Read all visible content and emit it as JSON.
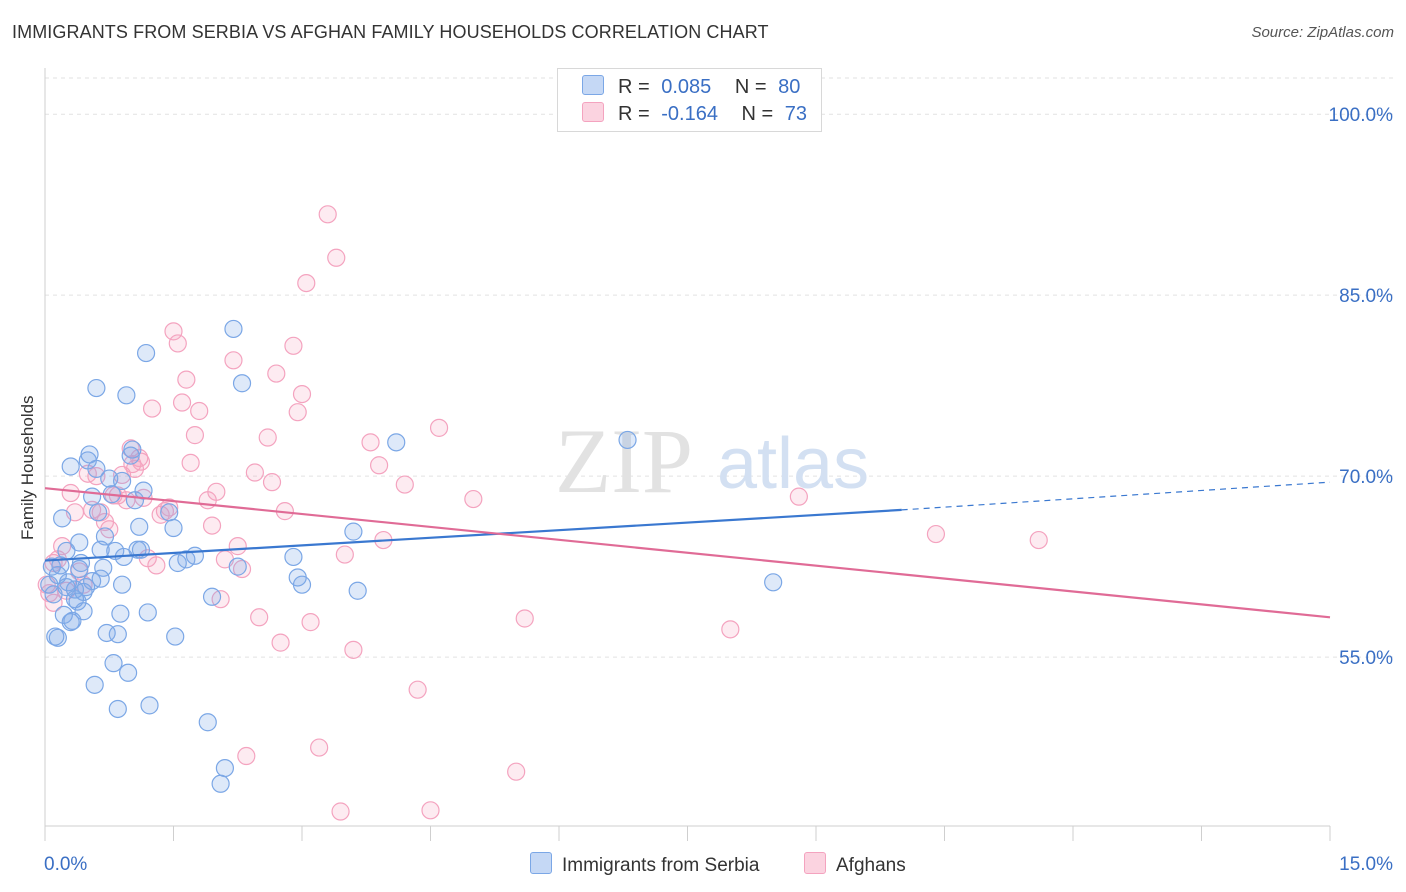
{
  "title": "IMMIGRANTS FROM SERBIA VS AFGHAN FAMILY HOUSEHOLDS CORRELATION CHART",
  "source": "Source: ZipAtlas.com",
  "watermark": {
    "zip": "ZIP",
    "atlas": "atlas"
  },
  "legend": {
    "rows": [
      {
        "r_label": "R =",
        "r_value": "0.085",
        "n_label": "N =",
        "n_value": "80",
        "color": "#7ba7e6"
      },
      {
        "r_label": "R =",
        "r_value": "-0.164",
        "n_label": "N =",
        "n_value": "73",
        "color": "#f4a3bf"
      }
    ]
  },
  "chart_data": {
    "type": "scatter",
    "xlabel": "",
    "ylabel": "Family Households",
    "xlim": [
      0,
      15
    ],
    "ylim": [
      41,
      103
    ],
    "x_tick_labels": [
      "0.0%",
      "15.0%"
    ],
    "y_ticks": [
      55,
      70,
      85,
      100
    ],
    "y_tick_labels": [
      "55.0%",
      "70.0%",
      "85.0%",
      "100.0%"
    ],
    "legend_position": "top-center",
    "series": [
      {
        "name": "Immigrants from Serbia",
        "color": "#7ba7e6",
        "line_color": "#3a78d0",
        "trend": {
          "x0": 0.0,
          "y0": 63.0,
          "x1": 10.0,
          "y1": 67.2,
          "dash_to": 15.0,
          "dash_y": 69.5
        },
        "points": [
          [
            0.05,
            61.0
          ],
          [
            0.08,
            62.5
          ],
          [
            0.1,
            60.2
          ],
          [
            0.12,
            56.7
          ],
          [
            0.15,
            61.8
          ],
          [
            0.18,
            62.6
          ],
          [
            0.2,
            66.5
          ],
          [
            0.22,
            58.5
          ],
          [
            0.25,
            63.8
          ],
          [
            0.27,
            61.2
          ],
          [
            0.3,
            70.8
          ],
          [
            0.32,
            58.0
          ],
          [
            0.35,
            60.6
          ],
          [
            0.38,
            59.6
          ],
          [
            0.4,
            64.5
          ],
          [
            0.42,
            62.8
          ],
          [
            0.45,
            58.8
          ],
          [
            0.48,
            60.8
          ],
          [
            0.5,
            71.3
          ],
          [
            0.52,
            71.8
          ],
          [
            0.55,
            61.3
          ],
          [
            0.58,
            52.7
          ],
          [
            0.6,
            77.3
          ],
          [
            0.62,
            67.0
          ],
          [
            0.65,
            63.9
          ],
          [
            0.68,
            62.4
          ],
          [
            0.7,
            65.0
          ],
          [
            0.72,
            57.0
          ],
          [
            0.75,
            69.8
          ],
          [
            0.78,
            68.5
          ],
          [
            0.8,
            54.5
          ],
          [
            0.82,
            63.8
          ],
          [
            0.85,
            50.7
          ],
          [
            0.88,
            58.6
          ],
          [
            0.9,
            61.0
          ],
          [
            0.92,
            63.3
          ],
          [
            0.95,
            76.7
          ],
          [
            0.97,
            53.7
          ],
          [
            1.0,
            71.7
          ],
          [
            1.02,
            72.2
          ],
          [
            1.05,
            68.0
          ],
          [
            1.08,
            63.9
          ],
          [
            1.1,
            65.8
          ],
          [
            1.12,
            63.9
          ],
          [
            1.15,
            68.8
          ],
          [
            1.18,
            80.2
          ],
          [
            1.2,
            58.7
          ],
          [
            1.22,
            51.0
          ],
          [
            1.45,
            67.0
          ],
          [
            1.5,
            65.7
          ],
          [
            1.52,
            56.7
          ],
          [
            1.55,
            62.8
          ],
          [
            1.75,
            63.4
          ],
          [
            1.9,
            49.6
          ],
          [
            1.95,
            60.0
          ],
          [
            2.05,
            44.5
          ],
          [
            2.1,
            45.8
          ],
          [
            2.2,
            82.2
          ],
          [
            2.25,
            62.5
          ],
          [
            2.3,
            77.7
          ],
          [
            2.9,
            63.3
          ],
          [
            2.95,
            61.6
          ],
          [
            3.0,
            61.0
          ],
          [
            3.6,
            65.4
          ],
          [
            3.65,
            60.5
          ],
          [
            4.1,
            72.8
          ],
          [
            6.8,
            73.0
          ],
          [
            8.5,
            61.2
          ],
          [
            0.35,
            59.8
          ],
          [
            0.9,
            69.6
          ],
          [
            0.55,
            68.3
          ],
          [
            1.65,
            63.1
          ],
          [
            0.15,
            56.6
          ],
          [
            0.25,
            60.8
          ],
          [
            0.45,
            60.4
          ],
          [
            0.65,
            61.5
          ],
          [
            0.85,
            56.9
          ],
          [
            0.4,
            62.3
          ],
          [
            0.3,
            57.9
          ],
          [
            0.6,
            70.6
          ]
        ]
      },
      {
        "name": "Afghans",
        "color": "#f4a3bf",
        "line_color": "#e06b96",
        "trend": {
          "x0": 0.0,
          "y0": 69.0,
          "x1": 15.0,
          "y1": 58.3
        },
        "points": [
          [
            0.02,
            61.0
          ],
          [
            0.05,
            60.3
          ],
          [
            0.1,
            62.8
          ],
          [
            0.15,
            63.1
          ],
          [
            0.2,
            64.2
          ],
          [
            0.25,
            60.5
          ],
          [
            0.3,
            68.6
          ],
          [
            0.35,
            67.0
          ],
          [
            0.4,
            62.1
          ],
          [
            0.45,
            61.0
          ],
          [
            0.5,
            70.2
          ],
          [
            0.55,
            67.2
          ],
          [
            0.6,
            70.0
          ],
          [
            0.65,
            67.0
          ],
          [
            0.7,
            66.2
          ],
          [
            0.75,
            65.6
          ],
          [
            0.8,
            68.4
          ],
          [
            0.85,
            68.4
          ],
          [
            0.9,
            70.1
          ],
          [
            0.95,
            68.0
          ],
          [
            1.0,
            72.3
          ],
          [
            1.02,
            71.0
          ],
          [
            1.05,
            70.6
          ],
          [
            1.1,
            71.5
          ],
          [
            1.12,
            71.2
          ],
          [
            1.15,
            68.2
          ],
          [
            1.2,
            63.2
          ],
          [
            1.25,
            75.6
          ],
          [
            1.3,
            62.6
          ],
          [
            1.35,
            66.8
          ],
          [
            1.4,
            67.1
          ],
          [
            1.45,
            67.4
          ],
          [
            1.5,
            82.0
          ],
          [
            1.55,
            81.0
          ],
          [
            1.6,
            76.1
          ],
          [
            1.65,
            78.0
          ],
          [
            1.7,
            71.1
          ],
          [
            1.75,
            73.4
          ],
          [
            1.8,
            75.4
          ],
          [
            1.9,
            68.0
          ],
          [
            1.95,
            65.9
          ],
          [
            2.0,
            68.7
          ],
          [
            2.05,
            59.8
          ],
          [
            2.1,
            63.1
          ],
          [
            2.2,
            79.6
          ],
          [
            2.25,
            64.2
          ],
          [
            2.3,
            62.3
          ],
          [
            2.35,
            46.8
          ],
          [
            2.45,
            70.3
          ],
          [
            2.5,
            58.3
          ],
          [
            2.6,
            73.2
          ],
          [
            2.65,
            69.5
          ],
          [
            2.7,
            78.5
          ],
          [
            2.75,
            56.2
          ],
          [
            2.8,
            67.1
          ],
          [
            2.9,
            80.8
          ],
          [
            2.95,
            75.3
          ],
          [
            3.0,
            76.8
          ],
          [
            3.05,
            86.0
          ],
          [
            3.1,
            57.9
          ],
          [
            3.2,
            47.5
          ],
          [
            3.3,
            91.7
          ],
          [
            3.4,
            88.1
          ],
          [
            3.45,
            42.2
          ],
          [
            3.5,
            63.5
          ],
          [
            3.6,
            55.6
          ],
          [
            3.8,
            72.8
          ],
          [
            3.9,
            70.9
          ],
          [
            3.95,
            64.7
          ],
          [
            4.2,
            69.3
          ],
          [
            4.35,
            52.3
          ],
          [
            4.5,
            42.3
          ],
          [
            4.6,
            74.0
          ]
        ]
      }
    ],
    "extra_points_afghans": [
      [
        5.0,
        68.1
      ],
      [
        5.5,
        45.5
      ],
      [
        5.6,
        58.2
      ],
      [
        8.0,
        57.3
      ],
      [
        8.8,
        68.3
      ],
      [
        10.4,
        65.2
      ],
      [
        11.6,
        64.7
      ],
      [
        0.1,
        59.5
      ]
    ]
  },
  "bottom_legend": [
    {
      "label": "Immigrants from Serbia",
      "color": "#7ba7e6"
    },
    {
      "label": "Afghans",
      "color": "#f4a3bf"
    }
  ]
}
